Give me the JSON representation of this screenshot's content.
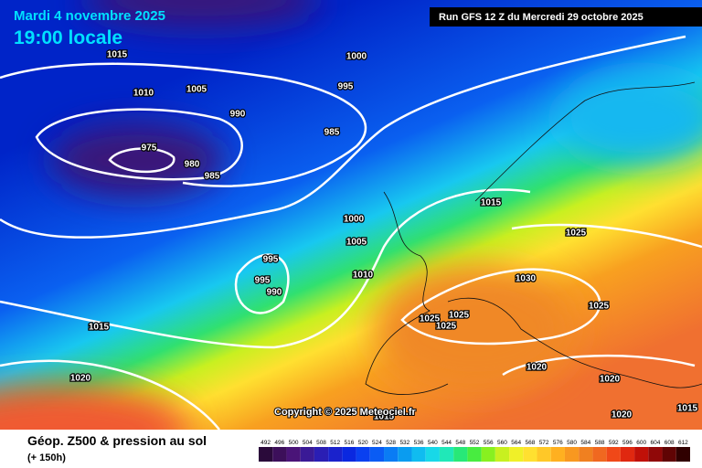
{
  "header": {
    "date": "Mardi 4 novembre 2025",
    "time": "19:00 locale",
    "run": "Run GFS 12 Z du Mercredi 29 octobre 2025"
  },
  "copyright": "Copyright © 2025 Meteociel.fr",
  "footer": {
    "title": "Géop. Z500 & pression au sol",
    "lead": "(+ 150h)"
  },
  "isobar_labels": [
    "1015",
    "1010",
    "1005",
    "1000",
    "995",
    "990",
    "985",
    "975",
    "980",
    "985",
    "1000",
    "1005",
    "995",
    "995",
    "990",
    "1010",
    "1015",
    "1025",
    "1030",
    "1025",
    "1025",
    "1025",
    "1025",
    "1015",
    "1020",
    "1020",
    "1020",
    "1020",
    "1015",
    "1015"
  ],
  "colorbar": {
    "values": [
      492,
      496,
      500,
      504,
      508,
      512,
      516,
      520,
      524,
      528,
      532,
      536,
      540,
      544,
      548,
      552,
      556,
      560,
      564,
      568,
      572,
      576,
      580,
      584,
      588,
      592,
      596,
      600,
      604,
      608,
      612
    ],
    "colors": [
      "#2a0a3a",
      "#3c0f5a",
      "#4a1478",
      "#3a1a96",
      "#2a1eb4",
      "#1a22cc",
      "#0a28e0",
      "#0a40f0",
      "#0a5cf4",
      "#0a7cf4",
      "#0a9cf0",
      "#10bcf0",
      "#18d8e8",
      "#20e8b8",
      "#28e878",
      "#48ec40",
      "#88f020",
      "#c8f020",
      "#f0f028",
      "#ffe030",
      "#ffc828",
      "#ffb020",
      "#f89820",
      "#f08020",
      "#f06820",
      "#f04818",
      "#e02810",
      "#c01008",
      "#900808",
      "#600404",
      "#300000"
    ]
  }
}
